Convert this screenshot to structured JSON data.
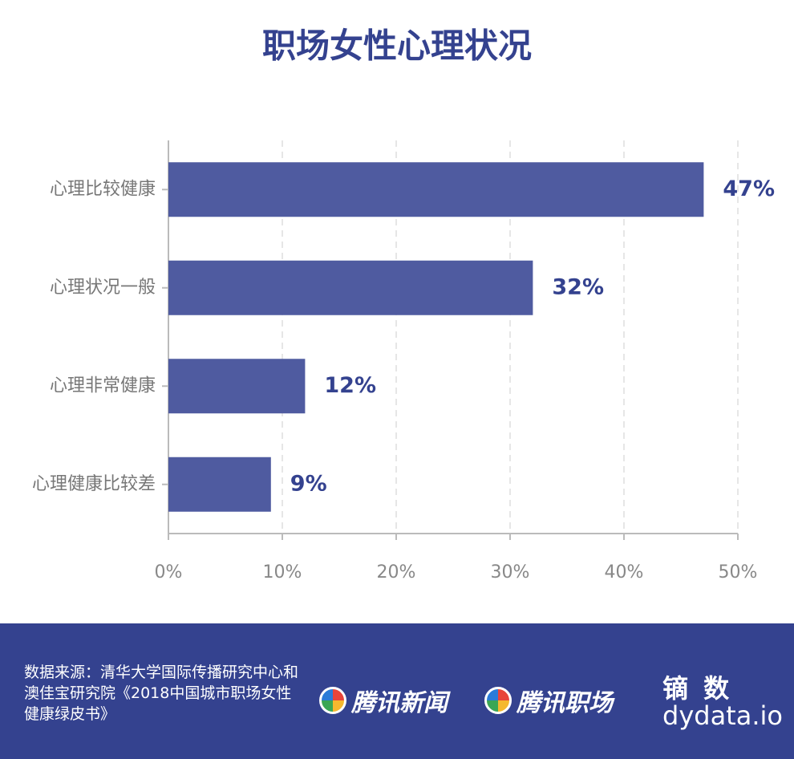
{
  "chart_data": {
    "type": "hbar",
    "title": "职场女性心理状况",
    "categories": [
      "心理比较健康",
      "心理状况一般",
      "心理非常健康",
      "心理健康比较差"
    ],
    "values": [
      47,
      32,
      12,
      9
    ],
    "value_labels": [
      "47%",
      "32%",
      "12%",
      "9%"
    ],
    "color": "#4f5ba0",
    "xlim": [
      0,
      50
    ],
    "xticks": [
      {
        "value": 0,
        "label": "0%"
      },
      {
        "value": 10,
        "label": "10%"
      },
      {
        "value": 20,
        "label": "20%"
      },
      {
        "value": 30,
        "label": "30%"
      },
      {
        "value": 40,
        "label": "40%"
      },
      {
        "value": 50,
        "label": "50%"
      }
    ],
    "grid": true
  },
  "footer": {
    "source": "数据来源：清华大学国际传播研究中心和澳佳宝研究院《2018中国城市职场女性健康绿皮书》",
    "logos": [
      "腾讯新闻",
      "腾讯职场"
    ],
    "brand": "镝 数",
    "brand_url": "dydata.io"
  }
}
